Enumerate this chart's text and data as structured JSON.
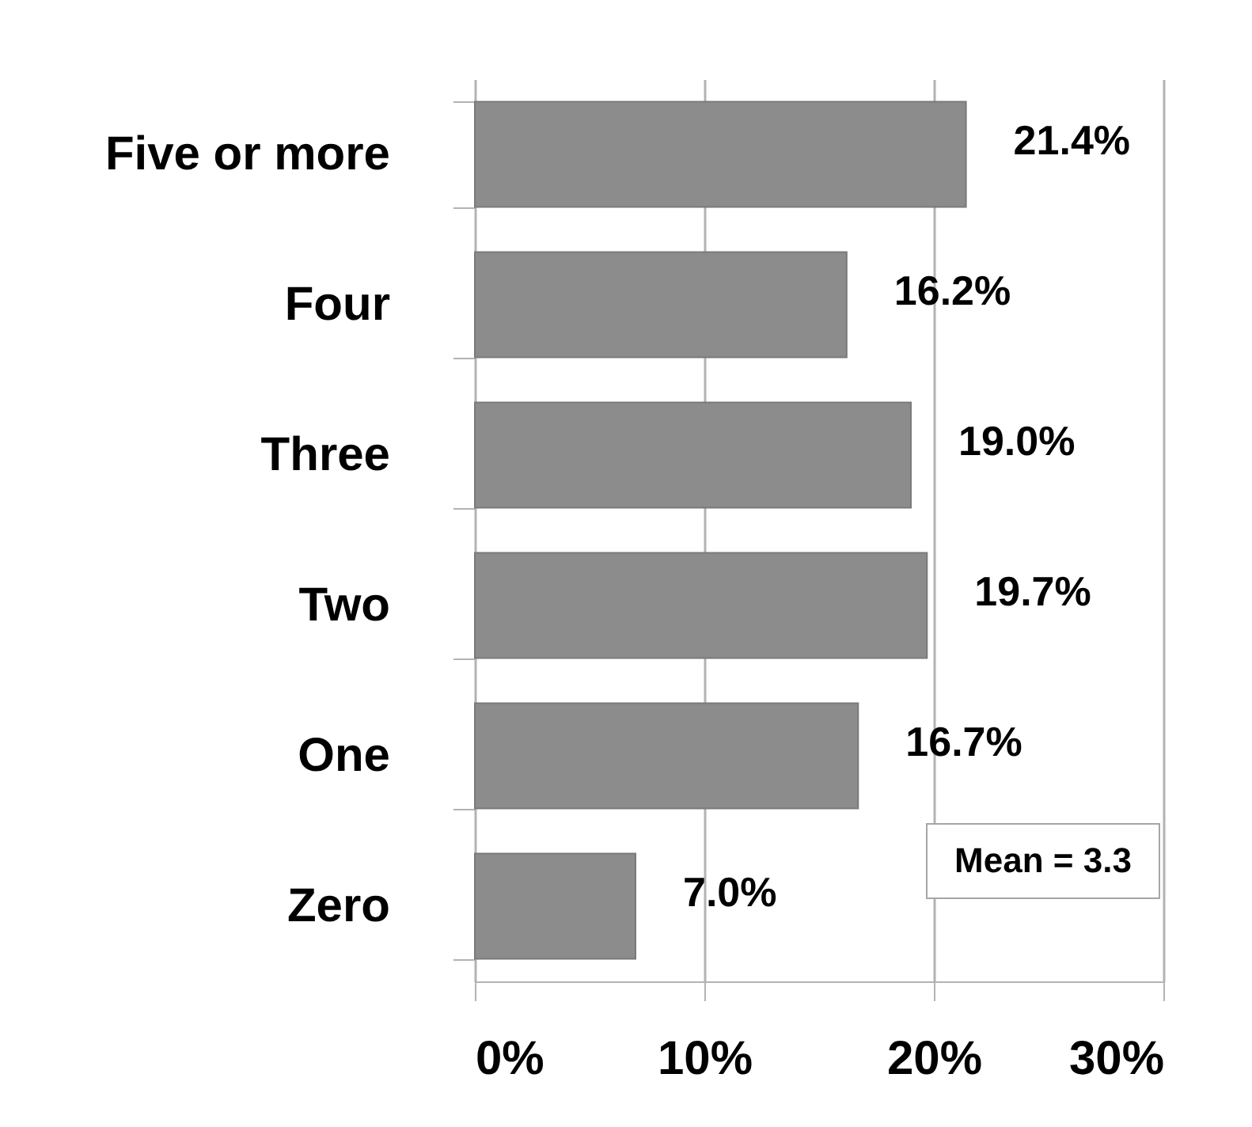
{
  "chart_data": {
    "type": "bar",
    "orientation": "horizontal",
    "categories": [
      "Five or more",
      "Four",
      "Three",
      "Two",
      "One",
      "Zero"
    ],
    "values": [
      21.4,
      16.2,
      19.0,
      19.7,
      16.7,
      7.0
    ],
    "value_labels": [
      "21.4%",
      "16.2%",
      "19.0%",
      "19.7%",
      "16.7%",
      "7.0%"
    ],
    "color": "#8c8c8c",
    "xlim": [
      0,
      30
    ],
    "xticks": [
      {
        "value": 0,
        "label": "0%"
      },
      {
        "value": 10,
        "label": "10%"
      },
      {
        "value": 20,
        "label": "20%"
      },
      {
        "value": 30,
        "label": "30%"
      }
    ],
    "grid": "x",
    "annotations": [
      "Mean = 3.3"
    ]
  }
}
